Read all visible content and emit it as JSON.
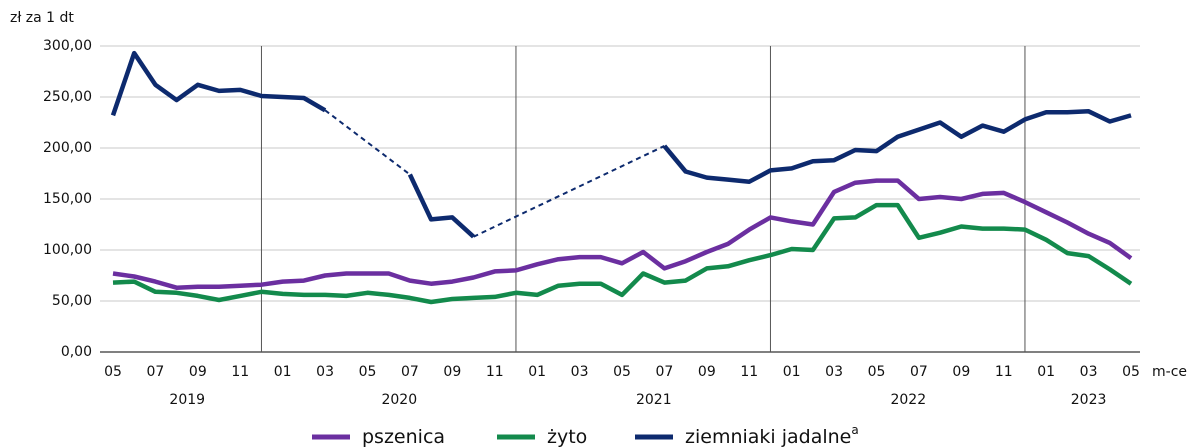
{
  "chart_data": {
    "type": "line",
    "y_label": "zł za 1 dt",
    "x_label": "m-ce",
    "categories": [
      "05",
      null,
      "07",
      null,
      "09",
      null,
      "11",
      null,
      "01",
      null,
      "03",
      null,
      "05",
      null,
      "07",
      null,
      "09",
      null,
      "11",
      null,
      "01",
      null,
      "03",
      null,
      "05",
      null,
      "07",
      null,
      "09",
      null,
      "11",
      null,
      "01",
      null,
      "03",
      null,
      "05",
      null,
      "07",
      null,
      "09",
      null,
      "11",
      null,
      "01",
      null,
      "03",
      null,
      "05"
    ],
    "year_labels": [
      "2019",
      "2020",
      "2021",
      "2022",
      "2023"
    ],
    "ylim": [
      0,
      300
    ],
    "yticks": [
      {
        "value": 0,
        "label": "0,00"
      },
      {
        "value": 50,
        "label": "50,00"
      },
      {
        "value": 100,
        "label": "100,00"
      },
      {
        "value": 150,
        "label": "150,00"
      },
      {
        "value": 200,
        "label": "200,00"
      },
      {
        "value": 250,
        "label": "250,00"
      },
      {
        "value": 300,
        "label": "300,00"
      }
    ],
    "grid": true,
    "gap_style": "dashed",
    "legend": "bottom",
    "series": [
      {
        "name": "pszenica",
        "color": "#6b2fa0",
        "values": [
          77,
          74,
          69,
          63,
          64,
          64,
          65,
          66,
          69,
          70,
          75,
          77,
          77,
          77,
          70,
          67,
          69,
          73,
          79,
          80,
          86,
          91,
          93,
          93,
          87,
          98,
          82,
          89,
          98,
          106,
          120,
          132,
          128,
          125,
          157,
          166,
          168,
          168,
          150,
          152,
          150,
          155,
          156,
          147,
          137,
          127,
          116,
          107,
          92
        ]
      },
      {
        "name": "żyto",
        "color": "#138a4c",
        "values": [
          68,
          69,
          59,
          58,
          55,
          51,
          55,
          59,
          57,
          56,
          56,
          55,
          58,
          56,
          53,
          49,
          52,
          53,
          54,
          58,
          56,
          65,
          67,
          67,
          56,
          77,
          68,
          70,
          82,
          84,
          90,
          95,
          101,
          100,
          131,
          132,
          144,
          144,
          112,
          117,
          123,
          121,
          121,
          120,
          110,
          97,
          94,
          81,
          67
        ]
      },
      {
        "name": "ziemniaki jadalne",
        "note": "a",
        "color": "#0d2a6e",
        "values": [
          232,
          293,
          262,
          247,
          262,
          256,
          257,
          251,
          250,
          249,
          237,
          null,
          null,
          null,
          174,
          130,
          132,
          113,
          null,
          null,
          null,
          null,
          null,
          null,
          null,
          null,
          202,
          177,
          171,
          169,
          167,
          178,
          180,
          187,
          188,
          198,
          197,
          211,
          218,
          225,
          211,
          222,
          216,
          228,
          235,
          235,
          236,
          226,
          232
        ]
      }
    ]
  }
}
